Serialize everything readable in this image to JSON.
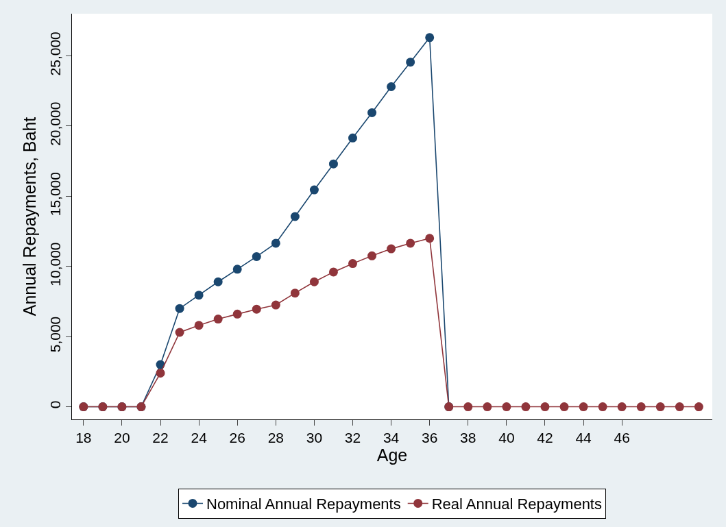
{
  "chart_data": {
    "type": "line",
    "xlabel": "Age",
    "ylabel": "Annual Repayments, Baht",
    "x": [
      18,
      19,
      20,
      21,
      22,
      23,
      24,
      25,
      26,
      27,
      28,
      29,
      30,
      31,
      32,
      33,
      34,
      35,
      36,
      37,
      38,
      39,
      40,
      41,
      42,
      43,
      44,
      45,
      46,
      47,
      48,
      49,
      50
    ],
    "series": [
      {
        "name": "Nominal Annual Repayments",
        "color": "#1a476f",
        "values": [
          0,
          0,
          0,
          0,
          3000,
          7000,
          7950,
          8900,
          9800,
          10700,
          11650,
          13550,
          15450,
          17300,
          19150,
          20950,
          22800,
          24550,
          26300,
          0,
          null,
          null,
          null,
          null,
          null,
          null,
          null,
          null,
          null,
          null,
          null,
          null,
          null
        ]
      },
      {
        "name": "Real Annual Repayments",
        "color": "#90353b",
        "values": [
          0,
          0,
          0,
          0,
          2400,
          5300,
          5800,
          6250,
          6600,
          6950,
          7250,
          8100,
          8900,
          9600,
          10200,
          10750,
          11250,
          11650,
          12000,
          0,
          0,
          0,
          0,
          0,
          0,
          0,
          0,
          0,
          0,
          0,
          0,
          0,
          0
        ]
      }
    ],
    "xlim": [
      17.4,
      50.7
    ],
    "xticks": [
      18,
      20,
      22,
      24,
      26,
      28,
      30,
      32,
      34,
      36,
      38,
      40,
      42,
      44,
      46
    ],
    "ylim": [
      -900,
      28000
    ],
    "yticks": [
      {
        "value": 0,
        "label": "0"
      },
      {
        "value": 5000,
        "label": "5,000"
      },
      {
        "value": 10000,
        "label": "10,000"
      },
      {
        "value": 15000,
        "label": "15,000"
      },
      {
        "value": 20000,
        "label": "20,000"
      },
      {
        "value": 25000,
        "label": "25,000"
      }
    ],
    "legend": "bottom",
    "marker": "circle",
    "line_style": "solid"
  }
}
